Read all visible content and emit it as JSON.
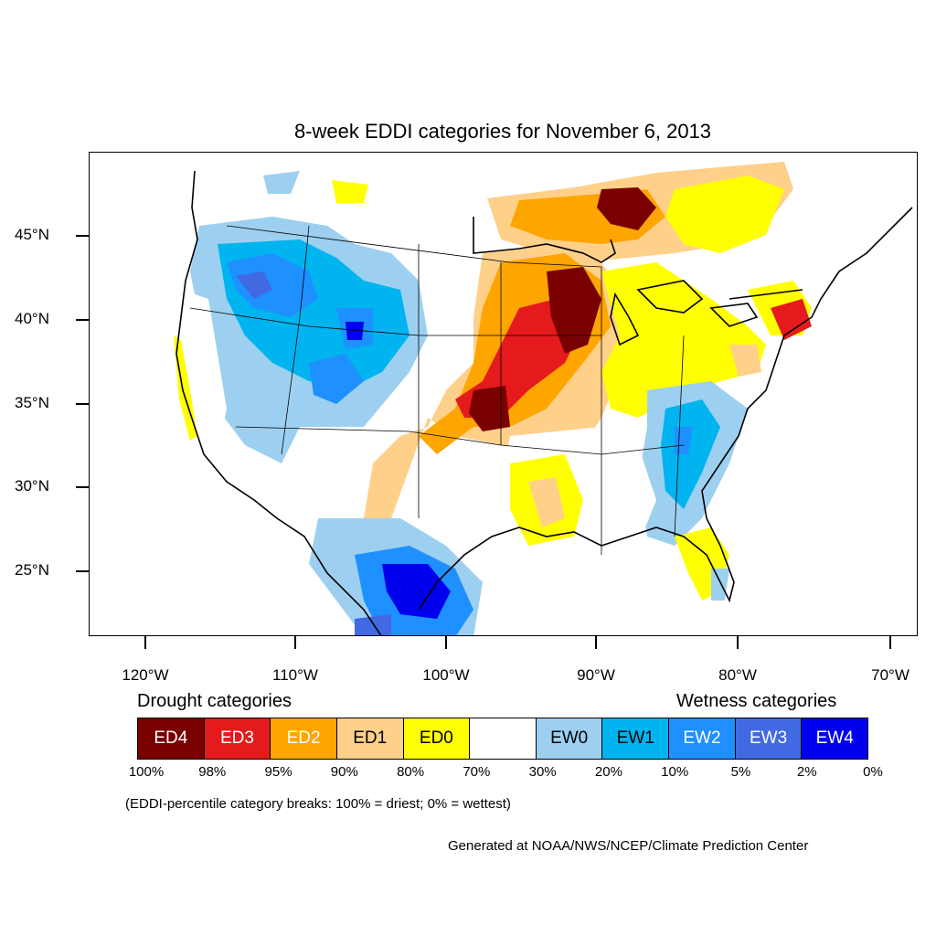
{
  "title": "8-week EDDI categories for November 6, 2013",
  "axes": {
    "lat_labels": [
      "45°N",
      "40°N",
      "35°N",
      "30°N",
      "25°N"
    ],
    "lon_labels": [
      "120°W",
      "110°W",
      "100°W",
      "90°W",
      "80°W",
      "70°W"
    ]
  },
  "legend": {
    "drought_heading": "Drought categories",
    "wetness_heading": "Wetness categories",
    "categories": [
      {
        "label": "ED4",
        "color": "#7a0000",
        "text_color": "#ffffff"
      },
      {
        "label": "ED3",
        "color": "#e41a1c",
        "text_color": "#ffffff"
      },
      {
        "label": "ED2",
        "color": "#ffa500",
        "text_color": "#ffffff"
      },
      {
        "label": "ED1",
        "color": "#ffd08a",
        "text_color": "#000000"
      },
      {
        "label": "ED0",
        "color": "#ffff00",
        "text_color": "#000000"
      },
      {
        "label": "",
        "color": "#ffffff",
        "text_color": "#000000"
      },
      {
        "label": "EW0",
        "color": "#9dd0f0",
        "text_color": "#000000"
      },
      {
        "label": "EW1",
        "color": "#00b4f0",
        "text_color": "#000000"
      },
      {
        "label": "EW2",
        "color": "#1e90ff",
        "text_color": "#ffffff"
      },
      {
        "label": "EW3",
        "color": "#4169e1",
        "text_color": "#ffffff"
      },
      {
        "label": "EW4",
        "color": "#0000ee",
        "text_color": "#ffffff"
      }
    ],
    "percent_breaks": [
      "100%",
      "98%",
      "95%",
      "90%",
      "80%",
      "70%",
      "30%",
      "20%",
      "10%",
      "5%",
      "2%",
      "0%"
    ]
  },
  "note": "(EDDI-percentile category breaks: 100% = driest; 0% = wettest)",
  "credit": "Generated at NOAA/NWS/NCEP/Climate Prediction Center"
}
